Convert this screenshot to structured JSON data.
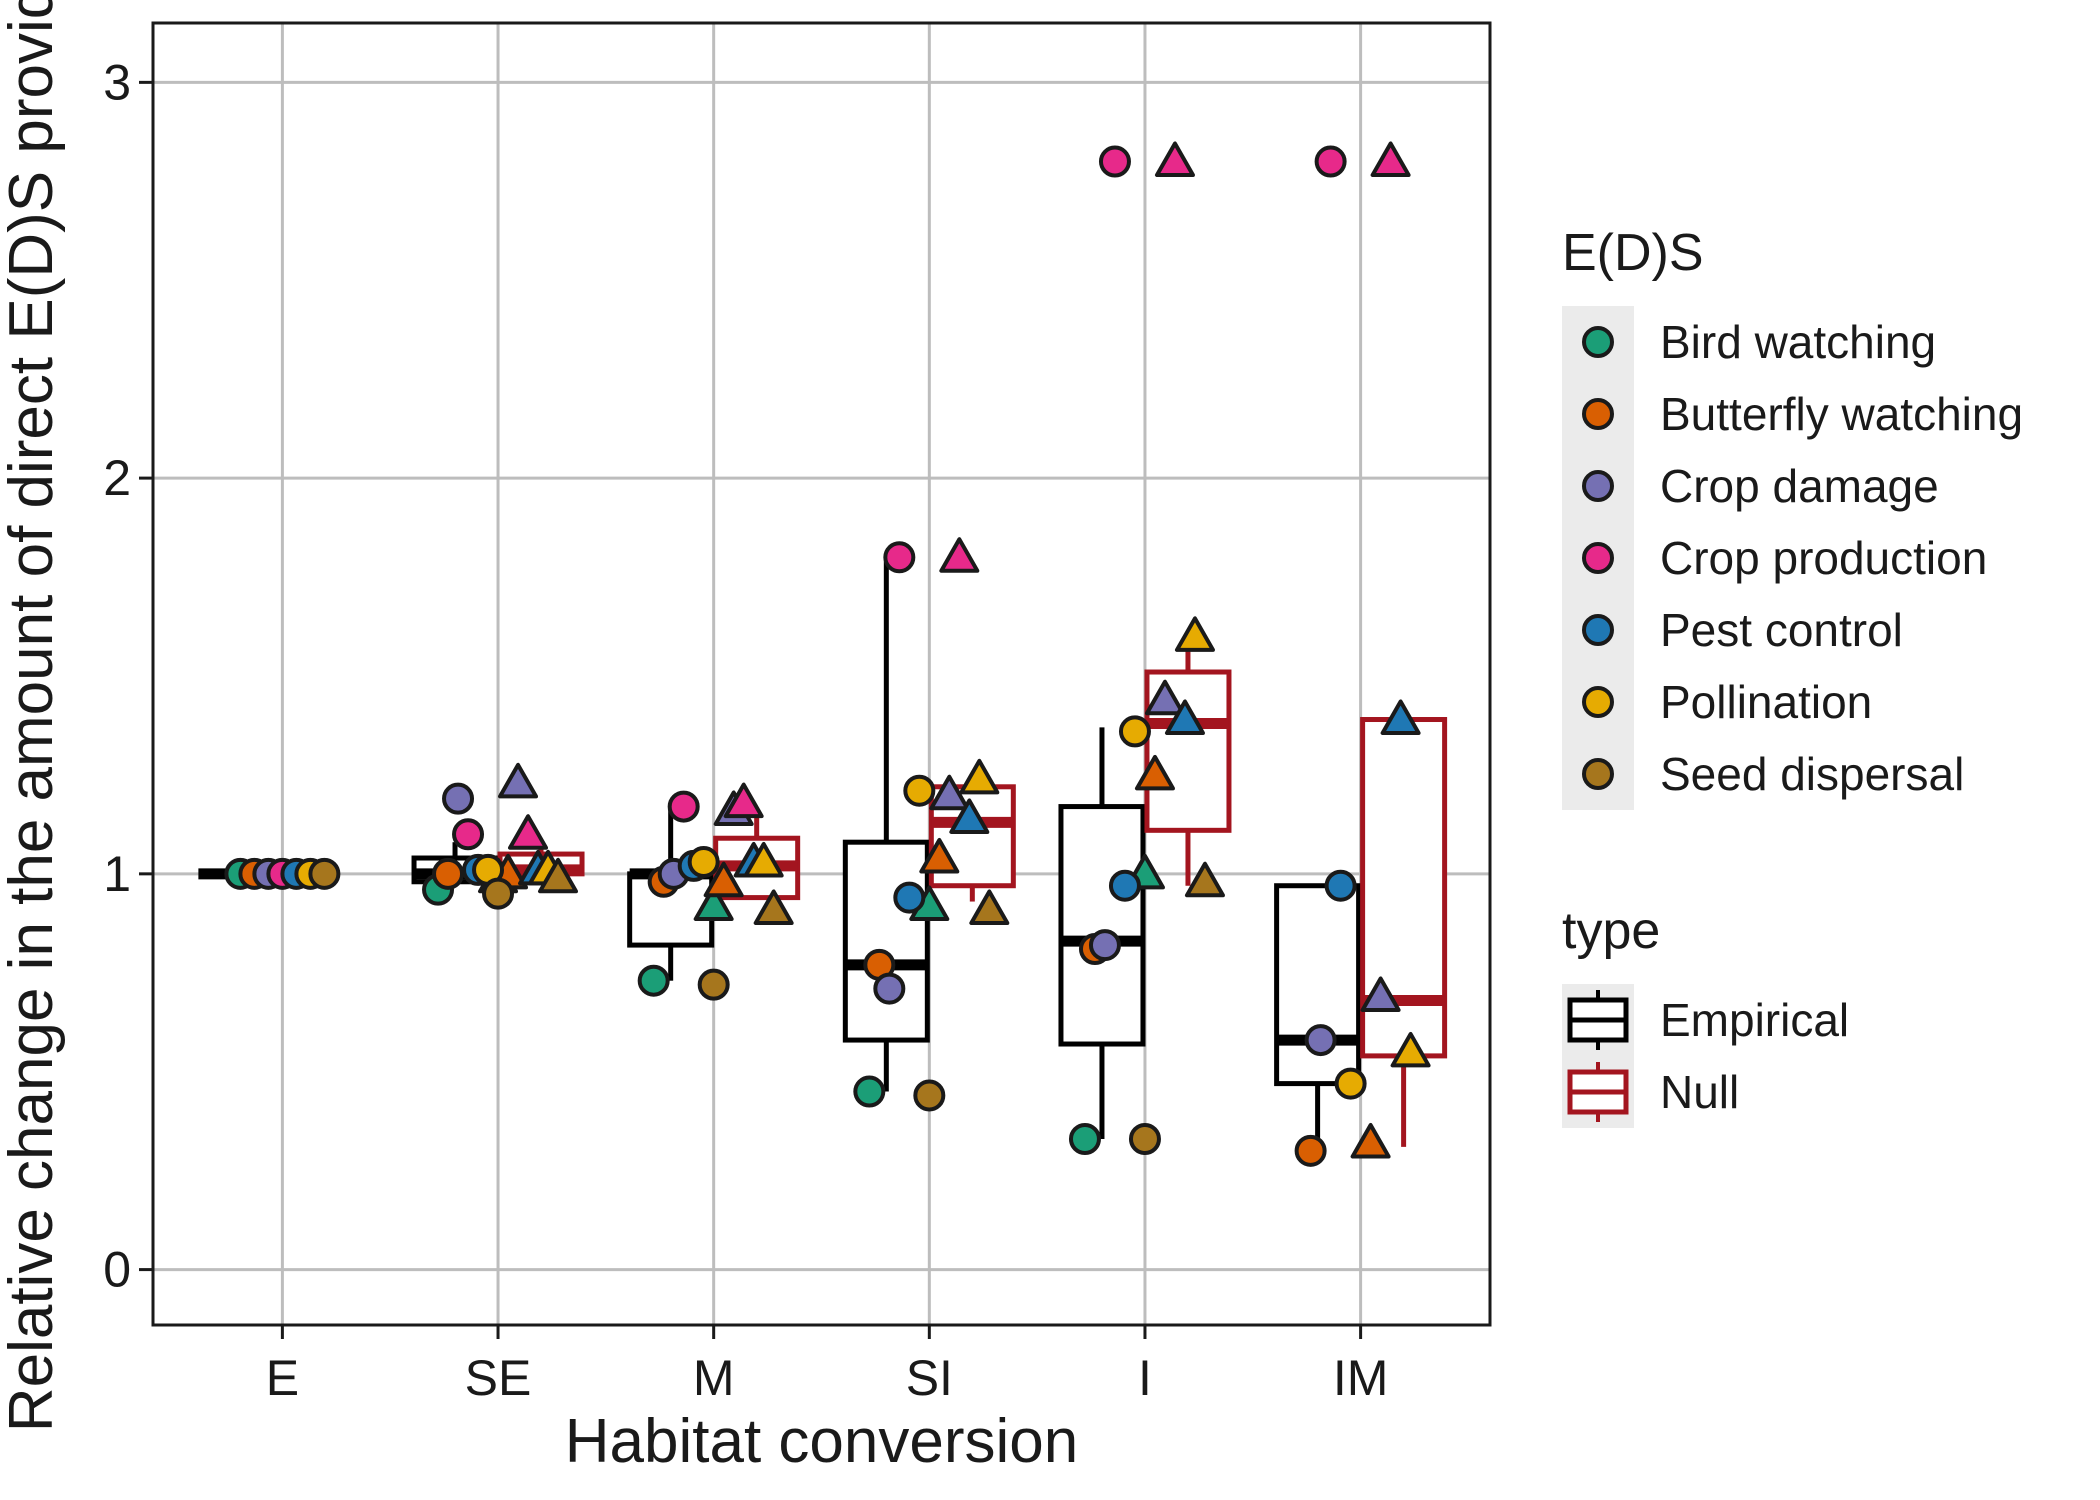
{
  "chart_data": {
    "type": "boxplot",
    "title": "",
    "xlabel": "Habitat conversion",
    "ylabel": "Relative change in the amount of direct E(D)S provided",
    "ylim": [
      -0.14,
      3.15
    ],
    "yticks": [
      0,
      1,
      2,
      3
    ],
    "categories": [
      "E",
      "SE",
      "M",
      "SI",
      "I",
      "IM"
    ],
    "grid": true,
    "legend_position": "right",
    "box_series": [
      {
        "name": "Empirical",
        "color": "#000000",
        "boxes": [
          {
            "category": "E",
            "min": 1.0,
            "q1": 1.0,
            "median": 1.0,
            "q3": 1.0,
            "max": 1.0
          },
          {
            "category": "SE",
            "min": 0.97,
            "q1": 0.98,
            "median": 1.0,
            "q3": 1.04,
            "max": 1.08
          },
          {
            "category": "M",
            "min": 0.73,
            "q1": 0.82,
            "median": 1.0,
            "q3": 1.0,
            "max": 1.17
          },
          {
            "category": "SI",
            "min": 0.45,
            "q1": 0.58,
            "median": 0.77,
            "q3": 1.08,
            "max": 1.79
          },
          {
            "category": "I",
            "min": 0.33,
            "q1": 0.57,
            "median": 0.83,
            "q3": 1.17,
            "max": 1.37
          },
          {
            "category": "IM",
            "min": 0.3,
            "q1": 0.47,
            "median": 0.58,
            "q3": 0.97,
            "max": 0.97
          }
        ]
      },
      {
        "name": "Null",
        "color": "#a3151f",
        "boxes": [
          {
            "category": "SE",
            "min": 1.0,
            "q1": 1.0,
            "median": 1.01,
            "q3": 1.05,
            "max": 1.08
          },
          {
            "category": "M",
            "min": 0.94,
            "q1": 0.94,
            "median": 1.02,
            "q3": 1.09,
            "max": 1.16
          },
          {
            "category": "SI",
            "min": 0.93,
            "q1": 0.97,
            "median": 1.13,
            "q3": 1.22,
            "max": 1.24
          },
          {
            "category": "I",
            "min": 0.97,
            "q1": 1.11,
            "median": 1.38,
            "q3": 1.51,
            "max": 1.58
          },
          {
            "category": "IM",
            "min": 0.31,
            "q1": 0.54,
            "median": 0.68,
            "q3": 1.39,
            "max": 1.39
          }
        ]
      }
    ],
    "point_series": [
      {
        "name": "Bird watching",
        "color": "#1b9e77",
        "empirical": [
          1.0,
          0.96,
          0.73,
          0.45,
          0.33,
          null
        ],
        "null": [
          null,
          0.99,
          0.92,
          0.92,
          1.0,
          null
        ]
      },
      {
        "name": "Butterfly watching",
        "color": "#d95f02",
        "empirical": [
          1.0,
          1.0,
          0.98,
          0.77,
          0.81,
          0.3
        ],
        "null": [
          null,
          1.0,
          0.98,
          1.04,
          1.25,
          0.32
        ]
      },
      {
        "name": "Crop damage",
        "color": "#7570b3",
        "empirical": [
          1.0,
          1.19,
          1.0,
          0.71,
          0.82,
          0.58
        ],
        "null": [
          null,
          1.23,
          1.16,
          1.2,
          1.44,
          0.69
        ]
      },
      {
        "name": "Crop production",
        "color": "#e7298a",
        "empirical": [
          1.0,
          1.1,
          1.17,
          1.8,
          2.8,
          2.8
        ],
        "null": [
          null,
          1.1,
          1.18,
          1.8,
          2.8,
          2.8
        ]
      },
      {
        "name": "Pest control",
        "color": "#1f78b4",
        "empirical": [
          1.0,
          1.01,
          1.02,
          0.94,
          0.97,
          0.97
        ],
        "null": [
          null,
          1.01,
          1.03,
          1.14,
          1.39,
          1.39
        ]
      },
      {
        "name": "Pollination",
        "color": "#e6ab02",
        "empirical": [
          1.0,
          1.01,
          1.03,
          1.21,
          1.36,
          0.47
        ],
        "null": [
          null,
          1.01,
          1.03,
          1.24,
          1.6,
          0.55
        ]
      },
      {
        "name": "Seed dispersal",
        "color": "#a6761d",
        "empirical": [
          1.0,
          0.95,
          0.72,
          0.44,
          0.33,
          null
        ],
        "null": [
          null,
          0.99,
          0.91,
          0.91,
          0.98,
          null
        ]
      }
    ],
    "legend": {
      "eds_title": "E(D)S",
      "type_title": "type"
    }
  }
}
